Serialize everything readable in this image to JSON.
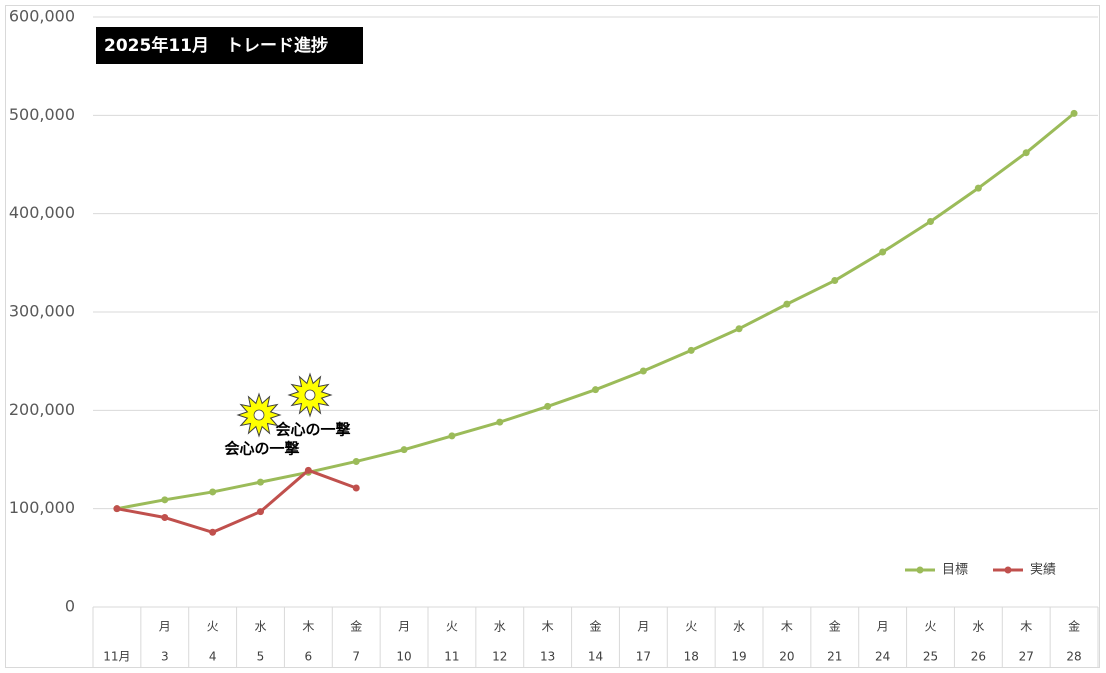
{
  "chart_data": {
    "type": "line",
    "title": "2025年11月　トレード進捗",
    "categories": [
      "11月",
      "3",
      "4",
      "5",
      "6",
      "7",
      "10",
      "11",
      "12",
      "13",
      "14",
      "17",
      "18",
      "19",
      "20",
      "21",
      "24",
      "25",
      "26",
      "27",
      "28"
    ],
    "weekdays": [
      null,
      "月",
      "火",
      "水",
      "木",
      "金",
      "月",
      "火",
      "水",
      "木",
      "金",
      "月",
      "火",
      "水",
      "木",
      "金",
      "月",
      "火",
      "水",
      "木",
      "金"
    ],
    "series": [
      {
        "name": "目標",
        "color": "#9bbb59",
        "values": [
          100000,
          109000,
          117000,
          127000,
          137000,
          148000,
          160000,
          174000,
          188000,
          204000,
          221000,
          240000,
          261000,
          283000,
          308000,
          332000,
          361000,
          392000,
          426000,
          462000,
          502000
        ]
      },
      {
        "name": "実績",
        "color": "#c0504d",
        "values": [
          100000,
          91000,
          76000,
          97000,
          139000,
          121000,
          null,
          null,
          null,
          null,
          null,
          null,
          null,
          null,
          null,
          null,
          null,
          null,
          null,
          null,
          null
        ]
      }
    ],
    "annotations": [
      "会心の一撃",
      "会心の一撃"
    ],
    "ylim": [
      0,
      600000
    ],
    "yticks": [
      0,
      {
        "value": 100000,
        "label": "100,000"
      },
      {
        "value": 200000,
        "label": "200,000"
      },
      {
        "value": 300000,
        "label": "300,000"
      },
      {
        "value": 400000,
        "label": "400,000"
      },
      {
        "value": 500000,
        "label": "500,000"
      },
      {
        "value": 600000,
        "label": "600,000"
      }
    ],
    "grid": true,
    "legend": "bottom-right"
  }
}
